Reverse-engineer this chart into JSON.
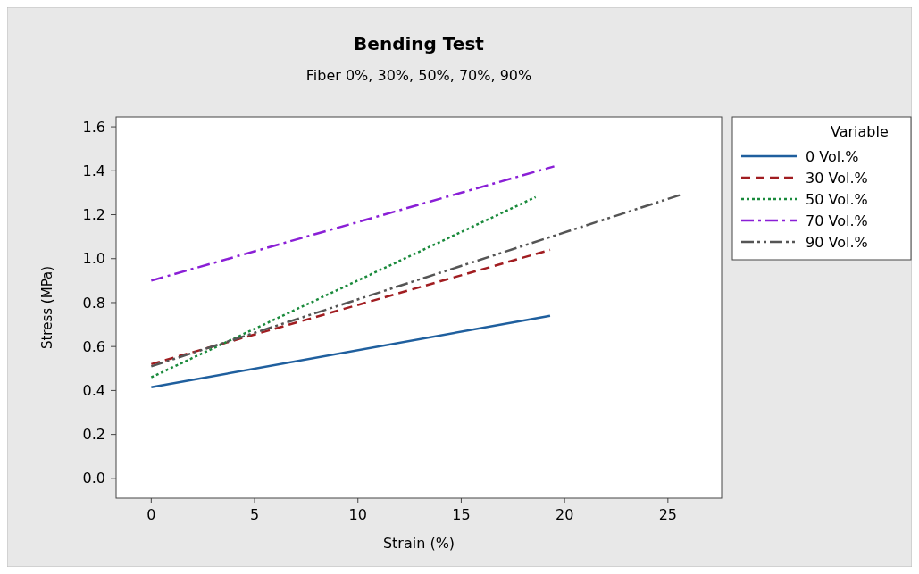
{
  "chart_data": {
    "type": "line",
    "title": "Bending Test",
    "subtitle": "Fiber 0%, 30%, 50%, 70%, 90%",
    "xlabel": "Strain (%)",
    "ylabel": "Stress (MPa)",
    "legend_title": "Variable",
    "legend": "right",
    "grid": false,
    "xlim": [
      -1.7,
      27.6
    ],
    "xticks": [
      0,
      5,
      10,
      15,
      20,
      25
    ],
    "ylim": [
      -0.09,
      1.645
    ],
    "yticks": [
      {
        "value": 0,
        "label": "0.0"
      },
      0.2,
      0.4,
      0.6,
      0.8,
      {
        "value": 1,
        "label": "1.0"
      },
      1.2,
      1.4,
      1.6
    ],
    "series": [
      {
        "name": "0 Vol.%",
        "color": "#1f5f9e",
        "line_style": "solid",
        "x": [
          0,
          19.3
        ],
        "values": [
          0.415,
          0.74
        ]
      },
      {
        "name": "30 Vol.%",
        "color": "#a11d21",
        "line_style": "dashed",
        "x": [
          0,
          19.3
        ],
        "values": [
          0.52,
          1.04
        ]
      },
      {
        "name": "50 Vol.%",
        "color": "#1a8a3c",
        "line_style": "dotted",
        "x": [
          0,
          18.6
        ],
        "values": [
          0.46,
          1.28
        ]
      },
      {
        "name": "70 Vol.%",
        "color": "#8a1fd6",
        "line_style": "dashdot",
        "x": [
          0,
          19.5
        ],
        "values": [
          0.9,
          1.42
        ]
      },
      {
        "name": "90 Vol.%",
        "color": "#555555",
        "line_style": "dashdotdot",
        "x": [
          0,
          25.6
        ],
        "values": [
          0.51,
          1.29
        ]
      }
    ]
  }
}
